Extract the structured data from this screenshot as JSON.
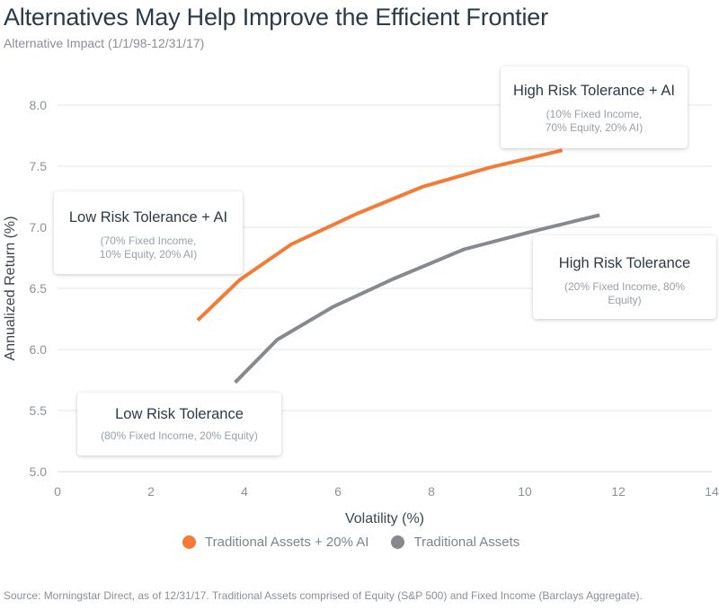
{
  "header": {
    "title": "Alternatives May Help Improve the Efficient Frontier",
    "subtitle": "Alternative Impact (1/1/98-12/31/17)"
  },
  "callouts": [
    {
      "title": "High Risk Tolerance + AI",
      "detail": "(10% Fixed Income, 70% Equity, 20% AI)"
    },
    {
      "title": "Low Risk Tolerance + AI",
      "detail": "(70% Fixed Income, 10% Equity, 20% AI)"
    },
    {
      "title": "High Risk Tolerance",
      "detail": "(20% Fixed Income, 80% Equity)"
    },
    {
      "title": "Low Risk Tolerance",
      "detail": "(80% Fixed Income, 20% Equity)"
    }
  ],
  "legend": [
    {
      "label": "Traditional Assets + 20% AI",
      "color": "#f47b36"
    },
    {
      "label": "Traditional Assets",
      "color": "#868a8f"
    }
  ],
  "footer": {
    "source": "Source: Morningstar Direct, as of 12/31/17. Traditional Assets comprised of Equity (S&P 500) and Fixed Income (Barclays Aggregate)."
  },
  "chart_data": {
    "type": "line",
    "title": "Alternatives May Help Improve the Efficient Frontier",
    "subtitle": "Alternative Impact (1/1/98-12/31/17)",
    "xlabel": "Volatility (%)",
    "ylabel": "Annualized Return (%)",
    "xlim": [
      0,
      14
    ],
    "ylim": [
      5.0,
      8.0
    ],
    "xticks": [
      "0",
      "2",
      "4",
      "6",
      "8",
      "10",
      "12",
      "14"
    ],
    "yticks": [
      "5.0",
      "5.5",
      "6.0",
      "6.5",
      "7.0",
      "7.5",
      "8.0"
    ],
    "grid": "horizontal",
    "legend_position": "bottom",
    "series": [
      {
        "name": "Traditional Assets + 20% AI",
        "color": "#f47b36",
        "x": [
          3.0,
          3.9,
          5.0,
          6.4,
          7.8,
          9.25,
          10.8
        ],
        "y": [
          6.24,
          6.57,
          6.86,
          7.11,
          7.33,
          7.49,
          7.63
        ]
      },
      {
        "name": "Traditional Assets",
        "color": "#868a8f",
        "x": [
          3.8,
          4.7,
          5.9,
          7.2,
          8.7,
          10.1,
          11.6
        ],
        "y": [
          5.73,
          6.08,
          6.35,
          6.58,
          6.82,
          6.96,
          7.1
        ]
      }
    ],
    "annotations": [
      "High Risk Tolerance + AI (10% Fixed Income, 70% Equity, 20% AI)",
      "Low Risk Tolerance + AI (70% Fixed Income, 10% Equity, 20% AI)",
      "High Risk Tolerance (20% Fixed Income, 80% Equity)",
      "Low Risk Tolerance (80% Fixed Income, 20% Equity)"
    ]
  }
}
